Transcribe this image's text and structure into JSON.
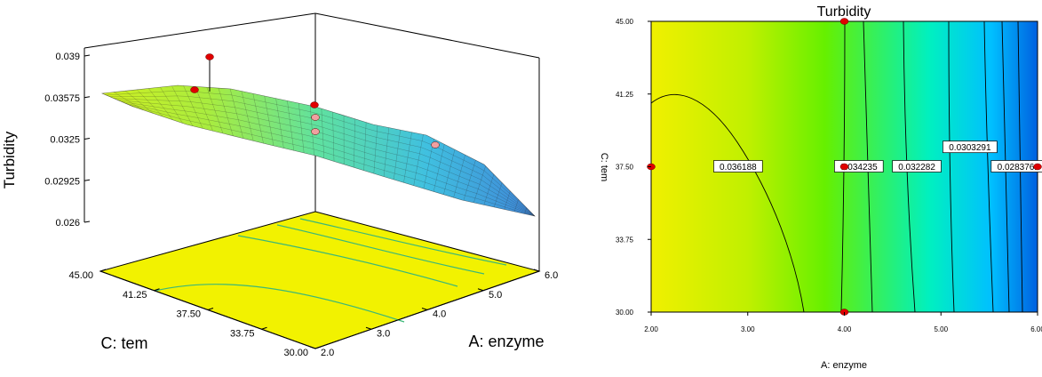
{
  "chart_data": [
    {
      "type": "surface3d",
      "title": "",
      "zlabel": "Turbidity",
      "xlabel": "A: enzyme",
      "ylabel": "C: tem",
      "x_ticks": [
        "2.0",
        "3.0",
        "4.0",
        "5.0",
        "6.0"
      ],
      "y_ticks": [
        "30.00",
        "33.75",
        "37.50",
        "41.25",
        "45.00"
      ],
      "z_ticks": [
        "0.026",
        "0.02925",
        "0.0325",
        "0.03575",
        "0.039"
      ],
      "xlim": [
        2.0,
        6.0
      ],
      "ylim": [
        30.0,
        45.0
      ],
      "zlim": [
        0.026,
        0.039
      ],
      "surface_colors": [
        "#3f86d8",
        "#40c0e0",
        "#5fe1a0",
        "#a8ec40",
        "#d0ef20"
      ],
      "floor_color": "#f2f200",
      "point_color": "#e00000",
      "design_points": [
        {
          "x": 4.0,
          "y": 45.0,
          "z": 0.0382
        },
        {
          "x": 2.0,
          "y": 45.0,
          "z": 0.0375
        },
        {
          "x": 4.0,
          "y": 37.5,
          "z": 0.0348
        },
        {
          "x": 4.0,
          "y": 37.5,
          "z": 0.034
        },
        {
          "x": 4.0,
          "y": 37.5,
          "z": 0.0335
        },
        {
          "x": 6.0,
          "y": 45.0,
          "z": 0.0316
        }
      ]
    },
    {
      "type": "contour",
      "title": "Turbidity",
      "xlabel": "A: enzyme",
      "ylabel": "C: tem",
      "x_ticks": [
        "2.00",
        "3.00",
        "4.00",
        "5.00",
        "6.00"
      ],
      "y_ticks": [
        "30.00",
        "33.75",
        "37.50",
        "41.25",
        "45.00"
      ],
      "xlim": [
        2.0,
        6.0
      ],
      "ylim": [
        30.0,
        45.0
      ],
      "contour_labels": [
        {
          "text": "0.036188",
          "x": 2.9,
          "y": 37.5
        },
        {
          "text": "0.034235",
          "x": 4.15,
          "y": 37.5
        },
        {
          "text": "0.032282",
          "x": 4.75,
          "y": 37.5
        },
        {
          "text": "0.0303291",
          "x": 5.3,
          "y": 38.5
        },
        {
          "text": "0.0283761",
          "x": 5.8,
          "y": 37.5
        }
      ],
      "gradient_colors": [
        "#f0f000",
        "#c0f000",
        "#66f000",
        "#00f0c0",
        "#00c0ff",
        "#0060e0"
      ],
      "point_color": "#e00000",
      "design_points": [
        {
          "x": 2.0,
          "y": 37.5
        },
        {
          "x": 4.0,
          "y": 45.0
        },
        {
          "x": 4.0,
          "y": 37.5
        },
        {
          "x": 4.0,
          "y": 30.0
        },
        {
          "x": 6.0,
          "y": 37.5
        }
      ]
    }
  ]
}
